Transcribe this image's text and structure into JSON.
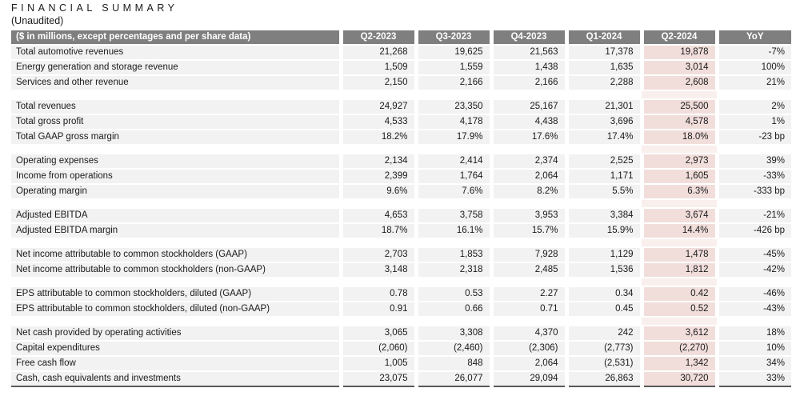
{
  "page": {
    "title": "FINANCIAL SUMMARY",
    "subtitle": "(Unaudited)"
  },
  "table": {
    "header": {
      "label": "($ in millions, except percentages and per share data)",
      "columns": [
        "Q2-2023",
        "Q3-2023",
        "Q4-2023",
        "Q1-2024",
        "Q2-2024",
        "YoY"
      ]
    },
    "highlight_column": "Q2-2024",
    "highlight_column_index": 4,
    "colors": {
      "header_bg": "#7f7f7f",
      "header_text": "#ffffff",
      "row_bg": "#f2f2f2",
      "highlight_bg": "#f1dedb",
      "highlight_spacer_bg": "#f9efed",
      "bottom_rule": "#595959"
    },
    "sections": [
      {
        "rows": [
          {
            "label": "Total automotive revenues",
            "values": [
              "21,268",
              "19,625",
              "21,563",
              "17,378",
              "19,878",
              "-7%"
            ]
          },
          {
            "label": "Energy generation and storage revenue",
            "values": [
              "1,509",
              "1,559",
              "1,438",
              "1,635",
              "3,014",
              "100%"
            ]
          },
          {
            "label": "Services and other revenue",
            "values": [
              "2,150",
              "2,166",
              "2,166",
              "2,288",
              "2,608",
              "21%"
            ]
          }
        ]
      },
      {
        "rows": [
          {
            "label": "Total revenues",
            "values": [
              "24,927",
              "23,350",
              "25,167",
              "21,301",
              "25,500",
              "2%"
            ]
          },
          {
            "label": "Total gross profit",
            "values": [
              "4,533",
              "4,178",
              "4,438",
              "3,696",
              "4,578",
              "1%"
            ]
          },
          {
            "label": "Total GAAP gross margin",
            "values": [
              "18.2%",
              "17.9%",
              "17.6%",
              "17.4%",
              "18.0%",
              "-23 bp"
            ]
          }
        ]
      },
      {
        "rows": [
          {
            "label": "Operating expenses",
            "values": [
              "2,134",
              "2,414",
              "2,374",
              "2,525",
              "2,973",
              "39%"
            ]
          },
          {
            "label": "Income from operations",
            "values": [
              "2,399",
              "1,764",
              "2,064",
              "1,171",
              "1,605",
              "-33%"
            ]
          },
          {
            "label": "Operating margin",
            "values": [
              "9.6%",
              "7.6%",
              "8.2%",
              "5.5%",
              "6.3%",
              "-333 bp"
            ]
          }
        ]
      },
      {
        "rows": [
          {
            "label": "Adjusted EBITDA",
            "values": [
              "4,653",
              "3,758",
              "3,953",
              "3,384",
              "3,674",
              "-21%"
            ]
          },
          {
            "label": "Adjusted EBITDA margin",
            "values": [
              "18.7%",
              "16.1%",
              "15.7%",
              "15.9%",
              "14.4%",
              "-426 bp"
            ]
          }
        ]
      },
      {
        "rows": [
          {
            "label": "Net income attributable to common stockholders (GAAP)",
            "values": [
              "2,703",
              "1,853",
              "7,928",
              "1,129",
              "1,478",
              "-45%"
            ]
          },
          {
            "label": "Net income attributable to common stockholders (non-GAAP)",
            "values": [
              "3,148",
              "2,318",
              "2,485",
              "1,536",
              "1,812",
              "-42%"
            ]
          }
        ]
      },
      {
        "rows": [
          {
            "label": "EPS attributable to common stockholders, diluted (GAAP)",
            "values": [
              "0.78",
              "0.53",
              "2.27",
              "0.34",
              "0.42",
              "-46%"
            ]
          },
          {
            "label": "EPS attributable to common stockholders, diluted (non-GAAP)",
            "values": [
              "0.91",
              "0.66",
              "0.71",
              "0.45",
              "0.52",
              "-43%"
            ]
          }
        ]
      },
      {
        "rows": [
          {
            "label": "Net cash provided by operating activities",
            "values": [
              "3,065",
              "3,308",
              "4,370",
              "242",
              "3,612",
              "18%"
            ]
          },
          {
            "label": "Capital expenditures",
            "values": [
              "(2,060)",
              "(2,460)",
              "(2,306)",
              "(2,773)",
              "(2,270)",
              "10%"
            ]
          },
          {
            "label": "Free cash flow",
            "values": [
              "1,005",
              "848",
              "2,064",
              "(2,531)",
              "1,342",
              "34%"
            ]
          },
          {
            "label": "Cash, cash equivalents and investments",
            "values": [
              "23,075",
              "26,077",
              "29,094",
              "26,863",
              "30,720",
              "33%"
            ]
          }
        ]
      }
    ]
  }
}
